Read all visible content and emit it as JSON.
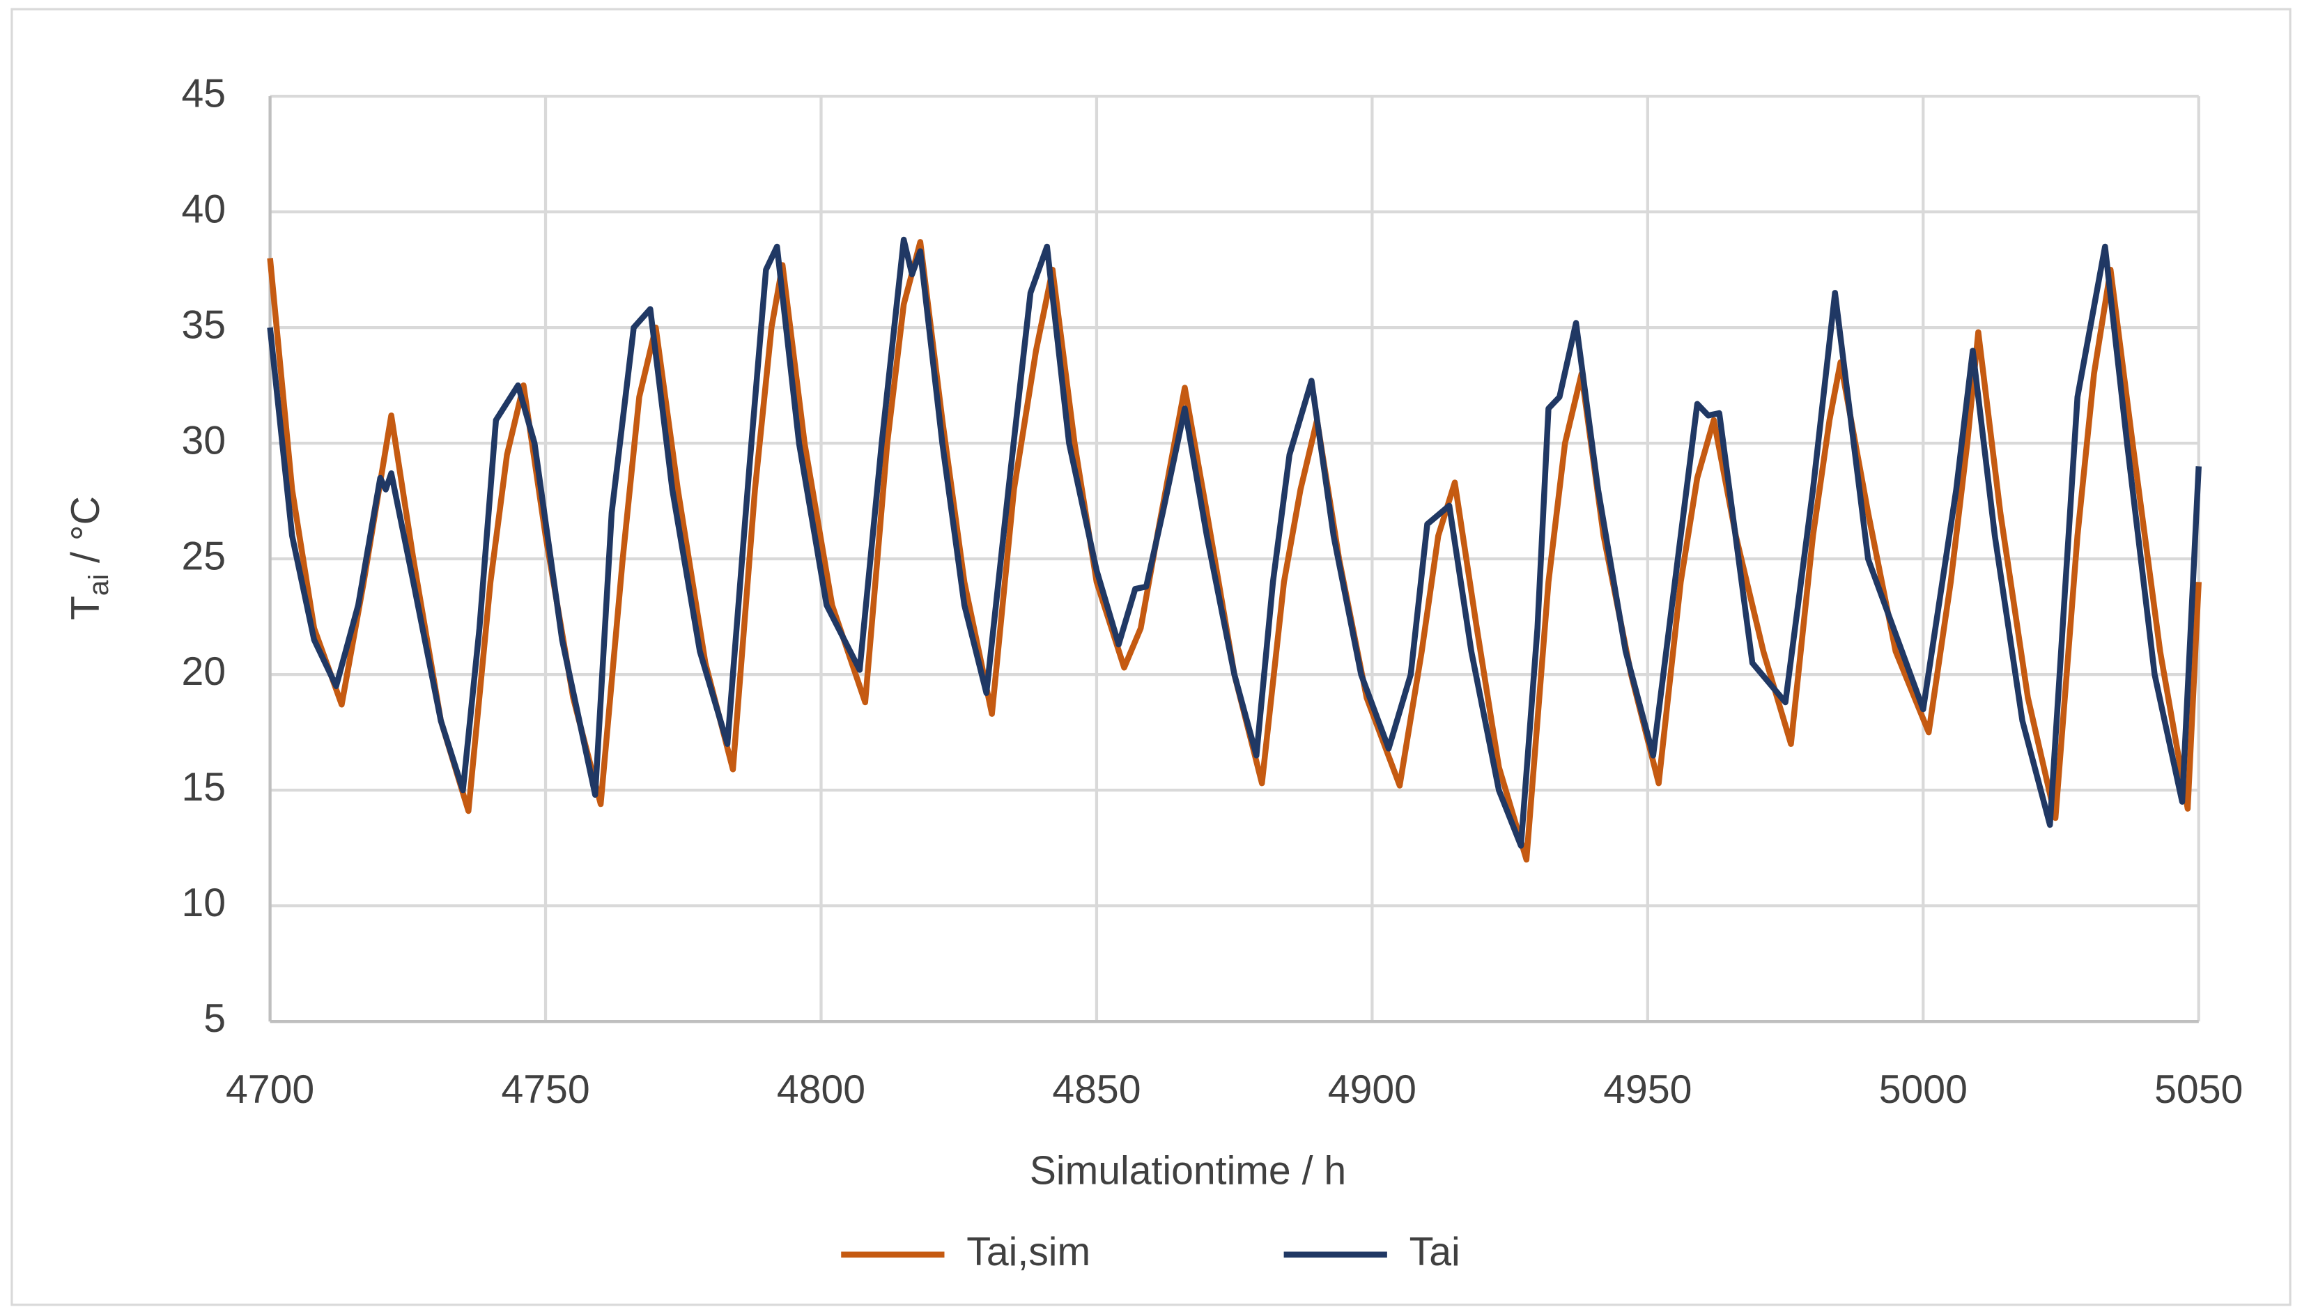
{
  "chart_data": {
    "type": "line",
    "x_label": "Simulationtime / h",
    "y_label_symbol": "T",
    "y_label_subscript": "ai",
    "y_label_unit": " / °C",
    "xlim": [
      4700,
      5050
    ],
    "xticks": [
      4700,
      4750,
      4800,
      4850,
      4900,
      4950,
      5000,
      5050
    ],
    "ylim": [
      5,
      45
    ],
    "yticks": [
      5,
      10,
      15,
      20,
      25,
      30,
      35,
      40,
      45
    ],
    "grid": true,
    "legend": "bottom",
    "series": [
      {
        "name": "Tai,sim",
        "color": "#c55a11",
        "x": [
          4700,
          4704,
          4708,
          4713,
          4717,
          4722,
          4726,
          4731,
          4736,
          4740,
          4743,
          4746,
          4750,
          4755,
          4760,
          4764,
          4767,
          4770,
          4774,
          4779,
          4784,
          4788,
          4791,
          4793,
          4797,
          4802,
          4808,
          4812,
          4815,
          4818,
          4822,
          4826,
          4831,
          4835,
          4839,
          4842,
          4846,
          4850,
          4855,
          4858,
          4861,
          4866,
          4870,
          4875,
          4880,
          4884,
          4887,
          4890,
          4894,
          4899,
          4905,
          4909,
          4912,
          4915,
          4919,
          4923,
          4928,
          4932,
          4935,
          4938,
          4942,
          4947,
          4952,
          4956,
          4959,
          4962,
          4966,
          4971,
          4976,
          4980,
          4983,
          4985,
          4990,
          4995,
          5001,
          5005,
          5008,
          5010,
          5014,
          5019,
          5024,
          5028,
          5031,
          5034,
          5038,
          5043,
          5048,
          5050
        ],
        "values": [
          38,
          28,
          22,
          18.7,
          24,
          31.2,
          25,
          18,
          14.1,
          24,
          29.5,
          32.5,
          26,
          19,
          14.4,
          25,
          32,
          35,
          28,
          20.5,
          15.9,
          28,
          35,
          37.7,
          30,
          23,
          18.8,
          30,
          36,
          38.7,
          31,
          24,
          18.3,
          28,
          34,
          37.5,
          30,
          24,
          20.3,
          22,
          26,
          32.4,
          27,
          20,
          15.3,
          24,
          28,
          31,
          25,
          19,
          15.2,
          21,
          26,
          28.3,
          22,
          16,
          12,
          24,
          30,
          33,
          26,
          20,
          15.3,
          24,
          28.5,
          31,
          26,
          21,
          17,
          26,
          31,
          33.5,
          27,
          21,
          17.5,
          24,
          30,
          34.8,
          27,
          19,
          13.8,
          26,
          33,
          37.5,
          30,
          21,
          14.2,
          24
        ]
      },
      {
        "name": "Tai",
        "color": "#203864",
        "x": [
          4700,
          4704,
          4708,
          4712,
          4716,
          4720,
          4721,
          4722,
          4726,
          4731,
          4735,
          4738,
          4741,
          4745,
          4748,
          4753,
          4759,
          4762,
          4766,
          4769,
          4773,
          4778,
          4783,
          4787,
          4790,
          4792,
          4796,
          4801,
          4807,
          4811,
          4815,
          4816.5,
          4818,
          4822,
          4826,
          4830,
          4834,
          4838,
          4841,
          4845,
          4850,
          4854,
          4857,
          4859,
          4862,
          4866,
          4870,
          4875,
          4879,
          4882,
          4885,
          4889,
          4893,
          4898,
          4903,
          4907,
          4910,
          4914,
          4918,
          4923,
          4927,
          4930,
          4932,
          4934,
          4937,
          4941,
          4946,
          4951,
          4956,
          4959,
          4961,
          4963,
          4969,
          4975,
          4980,
          4984,
          4990,
          5000,
          5006,
          5009,
          5013,
          5018,
          5023,
          5028,
          5033,
          5037,
          5042,
          5047,
          5050
        ],
        "values": [
          35,
          26,
          21.5,
          19.5,
          23,
          28.5,
          28,
          28.7,
          24,
          18,
          15,
          22,
          31,
          32.5,
          30,
          21.5,
          14.8,
          27,
          35,
          35.8,
          28,
          21,
          17,
          29,
          37.5,
          38.5,
          30,
          23,
          20.2,
          30,
          38.8,
          37.3,
          38.3,
          30,
          23,
          19.2,
          28,
          36.5,
          38.5,
          30,
          24.5,
          21.3,
          23.7,
          23.8,
          27,
          31.5,
          26,
          20,
          16.5,
          24,
          29.5,
          32.7,
          26,
          20,
          16.8,
          20,
          26.5,
          27.3,
          21,
          15,
          12.6,
          22,
          31.5,
          32,
          35.2,
          28,
          21,
          16.5,
          26,
          31.7,
          31.2,
          31.3,
          20.5,
          18.8,
          28,
          36.5,
          25,
          18.5,
          28,
          34,
          26,
          18,
          13.5,
          32,
          38.5,
          30,
          20,
          14.5,
          29
        ]
      }
    ]
  }
}
